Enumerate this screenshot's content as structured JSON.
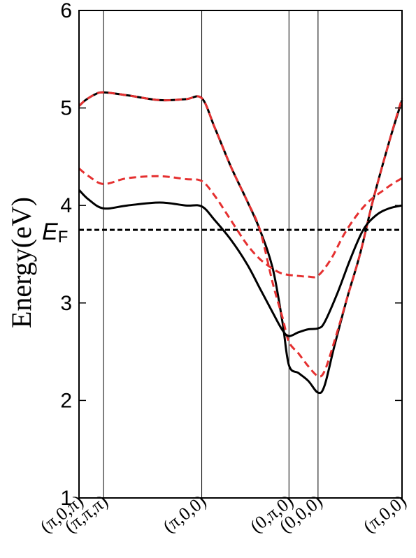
{
  "chart_data": {
    "type": "line",
    "ylabel": "Energy(eV)",
    "ylim": [
      1,
      6
    ],
    "yticks": [
      1,
      2,
      3,
      4,
      5,
      6
    ],
    "xlim": [
      0,
      1
    ],
    "kpoints": [
      {
        "label": "(π,0,π)",
        "x": 0.0
      },
      {
        "label": "(π,π,π)",
        "x": 0.076
      },
      {
        "label": "(π,0,0)",
        "x": 0.38
      },
      {
        "label": "(0,π,0)",
        "x": 0.65
      },
      {
        "label": "(0,0,0)",
        "x": 0.74
      },
      {
        "label": "(π,0,0)",
        "x": 1.0
      }
    ],
    "fermi_level": {
      "value": 3.75,
      "label": "E",
      "subscript": "F",
      "color": "#000000"
    },
    "series": [
      {
        "color": "#000000",
        "dash": "solid",
        "points": [
          [
            0.0,
            5.02
          ],
          [
            0.02,
            5.08
          ],
          [
            0.05,
            5.14
          ],
          [
            0.076,
            5.16
          ],
          [
            0.15,
            5.13
          ],
          [
            0.25,
            5.08
          ],
          [
            0.33,
            5.09
          ],
          [
            0.38,
            5.1
          ],
          [
            0.42,
            4.8
          ],
          [
            0.47,
            4.4
          ],
          [
            0.52,
            4.05
          ],
          [
            0.56,
            3.75
          ],
          [
            0.6,
            3.35
          ],
          [
            0.63,
            2.8
          ],
          [
            0.65,
            2.36
          ],
          [
            0.68,
            2.28
          ],
          [
            0.71,
            2.2
          ],
          [
            0.74,
            2.08
          ],
          [
            0.76,
            2.15
          ],
          [
            0.79,
            2.55
          ],
          [
            0.83,
            3.05
          ],
          [
            0.87,
            3.5
          ],
          [
            0.91,
            4.05
          ],
          [
            0.96,
            4.65
          ],
          [
            1.0,
            5.08
          ]
        ]
      },
      {
        "color": "#e53030",
        "dash": "dashed",
        "points": [
          [
            0.0,
            5.02
          ],
          [
            0.02,
            5.08
          ],
          [
            0.05,
            5.14
          ],
          [
            0.076,
            5.16
          ],
          [
            0.15,
            5.13
          ],
          [
            0.25,
            5.08
          ],
          [
            0.33,
            5.09
          ],
          [
            0.38,
            5.1
          ],
          [
            0.42,
            4.8
          ],
          [
            0.47,
            4.4
          ],
          [
            0.52,
            4.05
          ],
          [
            0.56,
            3.75
          ],
          [
            0.6,
            3.2
          ],
          [
            0.63,
            2.85
          ],
          [
            0.65,
            2.6
          ],
          [
            0.68,
            2.48
          ],
          [
            0.71,
            2.35
          ],
          [
            0.74,
            2.25
          ],
          [
            0.76,
            2.3
          ],
          [
            0.79,
            2.6
          ],
          [
            0.83,
            3.05
          ],
          [
            0.87,
            3.5
          ],
          [
            0.91,
            4.05
          ],
          [
            0.96,
            4.65
          ],
          [
            1.0,
            5.1
          ]
        ]
      },
      {
        "color": "#000000",
        "dash": "solid",
        "points": [
          [
            0.0,
            4.16
          ],
          [
            0.03,
            4.06
          ],
          [
            0.076,
            3.97
          ],
          [
            0.15,
            4.0
          ],
          [
            0.25,
            4.03
          ],
          [
            0.33,
            4.0
          ],
          [
            0.38,
            3.99
          ],
          [
            0.42,
            3.85
          ],
          [
            0.47,
            3.65
          ],
          [
            0.52,
            3.4
          ],
          [
            0.56,
            3.15
          ],
          [
            0.6,
            2.9
          ],
          [
            0.63,
            2.72
          ],
          [
            0.65,
            2.66
          ],
          [
            0.68,
            2.7
          ],
          [
            0.71,
            2.73
          ],
          [
            0.74,
            2.74
          ],
          [
            0.76,
            2.8
          ],
          [
            0.8,
            3.1
          ],
          [
            0.84,
            3.45
          ],
          [
            0.88,
            3.75
          ],
          [
            0.92,
            3.9
          ],
          [
            0.96,
            3.97
          ],
          [
            1.0,
            4.0
          ]
        ]
      },
      {
        "color": "#e53030",
        "dash": "dashed",
        "points": [
          [
            0.0,
            4.38
          ],
          [
            0.03,
            4.3
          ],
          [
            0.076,
            4.22
          ],
          [
            0.15,
            4.28
          ],
          [
            0.25,
            4.3
          ],
          [
            0.33,
            4.27
          ],
          [
            0.38,
            4.25
          ],
          [
            0.42,
            4.1
          ],
          [
            0.47,
            3.85
          ],
          [
            0.52,
            3.6
          ],
          [
            0.56,
            3.45
          ],
          [
            0.6,
            3.35
          ],
          [
            0.63,
            3.3
          ],
          [
            0.67,
            3.28
          ],
          [
            0.71,
            3.27
          ],
          [
            0.74,
            3.28
          ],
          [
            0.78,
            3.45
          ],
          [
            0.82,
            3.7
          ],
          [
            0.86,
            3.9
          ],
          [
            0.9,
            4.05
          ],
          [
            0.94,
            4.15
          ],
          [
            0.97,
            4.22
          ],
          [
            1.0,
            4.28
          ]
        ]
      }
    ],
    "grid": false
  }
}
